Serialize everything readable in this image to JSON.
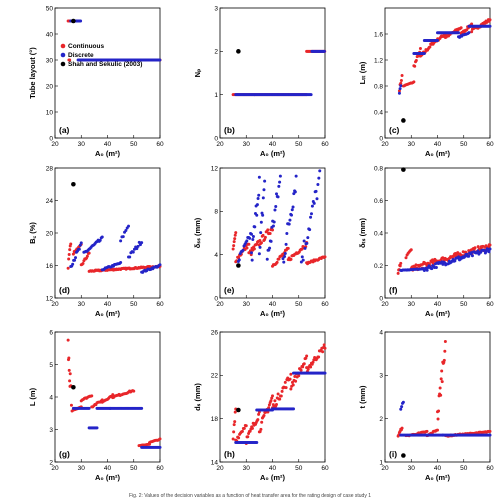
{
  "caption": "Fig. 2: Values of the decision variables as a function of heat transfer area for the rating design of case study 1",
  "colors": {
    "continuous": "#e8262a",
    "discrete": "#2424c8",
    "reference": "#000000"
  },
  "legend": {
    "items": [
      {
        "label": "Continuous",
        "color": "#e8262a"
      },
      {
        "label": "Discrete",
        "color": "#2424c8"
      },
      {
        "label": "Shah and Sekulic (2003)",
        "color": "#000000"
      }
    ]
  },
  "chart_data": [
    {
      "type": "scatter",
      "panel": "(a)",
      "ylabel": "Tube layout (°)",
      "xlabel": "A₀ (m²)",
      "xlim": [
        20,
        60
      ],
      "ylim": [
        0,
        50
      ],
      "xticks": [
        20,
        30,
        40,
        50,
        60
      ],
      "yticks": [
        0,
        10,
        20,
        30,
        40,
        50
      ],
      "legend": "top-right",
      "series": [
        {
          "name": "Continuous",
          "gen": "flat",
          "segments": [
            [
              25,
              26.5,
              45,
              0.4
            ],
            [
              27.3,
              28.8,
              45,
              0.4
            ],
            [
              25.3,
              25.6,
              30,
              0.3
            ],
            [
              30,
              60,
              30,
              0.4
            ]
          ]
        },
        {
          "name": "Discrete",
          "gen": "flat",
          "segments": [
            [
              26,
              29.8,
              45,
              0.25
            ],
            [
              28.8,
              60,
              30,
              0.35
            ]
          ]
        },
        {
          "name": "Shah and Sekulic (2003)",
          "points": [
            [
              27,
              45
            ]
          ]
        }
      ]
    },
    {
      "type": "scatter",
      "panel": "(b)",
      "ylabel": "Nₚ",
      "xlabel": "A₀ (m²)",
      "xlim": [
        20,
        60
      ],
      "ylim": [
        0,
        3
      ],
      "xticks": [
        20,
        30,
        40,
        50,
        60
      ],
      "yticks": [
        0,
        1,
        2,
        3
      ],
      "series": [
        {
          "name": "Continuous",
          "gen": "flat",
          "segments": [
            [
              25,
              53,
              1,
              0.35
            ],
            [
              53,
              60,
              2,
              0.3
            ]
          ]
        },
        {
          "name": "Discrete",
          "gen": "flat",
          "segments": [
            [
              26,
              55,
              1,
              0.35
            ],
            [
              55,
              60,
              2,
              0.3
            ]
          ]
        },
        {
          "name": "Shah and Sekulic (2003)",
          "points": [
            [
              27,
              2
            ]
          ]
        }
      ]
    },
    {
      "type": "scatter",
      "panel": "(c)",
      "ylabel": "Lₜₜ (m)",
      "xlabel": "A₀ (m²)",
      "xlim": [
        20,
        60
      ],
      "ylim": [
        0,
        2
      ],
      "xticks": [
        20,
        30,
        40,
        50,
        60
      ],
      "yticks": [
        0,
        0.4,
        0.8,
        1.2,
        1.6
      ],
      "series": [
        {
          "name": "Continuous",
          "gen": "ramp",
          "segments": [
            [
              25.5,
              26.5,
              0.75,
              0.95,
              0.25
            ],
            [
              27,
              31,
              0.8,
              0.86,
              0.4
            ],
            [
              31,
              33.5,
              1.1,
              1.35,
              0.3
            ],
            [
              33.5,
              38,
              1.25,
              1.45,
              0.3
            ],
            [
              38,
              43,
              1.45,
              1.6,
              0.3
            ],
            [
              43,
              49,
              1.55,
              1.7,
              0.3
            ],
            [
              49,
              53,
              1.6,
              1.75,
              0.3
            ],
            [
              53,
              60,
              1.65,
              1.82,
              0.3
            ]
          ]
        },
        {
          "name": "Discrete",
          "gen": "ramp",
          "segments": [
            [
              25.5,
              26,
              0.7,
              0.8,
              0.3
            ],
            [
              31,
              35,
              1.3,
              1.3,
              0.35
            ],
            [
              35,
              40,
              1.5,
              1.5,
              0.35
            ],
            [
              40,
              48,
              1.62,
              1.62,
              0.35
            ],
            [
              48,
              52,
              1.55,
              1.62,
              0.4
            ],
            [
              52,
              60,
              1.72,
              1.72,
              0.35
            ]
          ]
        },
        {
          "name": "Shah and Sekulic (2003)",
          "points": [
            [
              27,
              0.27
            ]
          ]
        }
      ]
    },
    {
      "type": "scatter",
      "panel": "(d)",
      "ylabel": "B꜀ (%)",
      "xlabel": "A₀ (m²)",
      "xlim": [
        20,
        60
      ],
      "ylim": [
        12,
        28
      ],
      "xticks": [
        20,
        30,
        40,
        50,
        60
      ],
      "yticks": [
        12,
        16,
        20,
        24,
        28
      ],
      "series": [
        {
          "name": "Continuous",
          "gen": "ramp",
          "segments": [
            [
              25,
              26,
              16,
              19,
              0.2
            ],
            [
              27,
              30,
              17.5,
              18.5,
              0.35
            ],
            [
              30,
              33,
              16,
              17.5,
              0.35
            ],
            [
              33,
              60,
              15.3,
              15.9,
              0.3
            ]
          ]
        },
        {
          "name": "Discrete",
          "gen": "ramp",
          "segments": [
            [
              26,
              30,
              16,
              18.5,
              0.35
            ],
            [
              31,
              38,
              17.5,
              19.3,
              0.4
            ],
            [
              38,
              45,
              15.5,
              16.3,
              0.4
            ],
            [
              45,
              48,
              19,
              21,
              0.5
            ],
            [
              48,
              53,
              17,
              19,
              0.45
            ],
            [
              53,
              60,
              15.2,
              16,
              0.4
            ]
          ]
        },
        {
          "name": "Shah and Sekulic (2003)",
          "points": [
            [
              27,
              26
            ]
          ]
        }
      ]
    },
    {
      "type": "scatter",
      "panel": "(e)",
      "ylabel": "δₛₛ (mm)",
      "xlabel": "A₀ (m²)",
      "xlim": [
        20,
        60
      ],
      "ylim": [
        0,
        12
      ],
      "xticks": [
        20,
        30,
        40,
        50,
        60
      ],
      "yticks": [
        0,
        4,
        8,
        12
      ],
      "series": [
        {
          "name": "Continuous",
          "gen": "ramp",
          "segments": [
            [
              25,
              26,
              4.5,
              6,
              0.2
            ],
            [
              26,
              31,
              3.5,
              5,
              0.35
            ],
            [
              31,
              40,
              4,
              6.5,
              0.3
            ],
            [
              40,
              46,
              3,
              4.5,
              0.35
            ],
            [
              46,
              53,
              3.5,
              5,
              0.35
            ],
            [
              53,
              60,
              3.2,
              3.8,
              0.35
            ]
          ]
        },
        {
          "name": "Discrete",
          "gen": "ramp",
          "segments": [
            [
              27,
              32,
              3.5,
              6,
              0.35
            ],
            [
              32,
              35,
              3.5,
              11,
              0.25
            ],
            [
              35,
              37,
              3.5,
              11,
              0.25
            ],
            [
              38,
              43,
              3.5,
              11,
              0.3
            ],
            [
              44,
              49,
              3.5,
              11,
              0.3
            ],
            [
              51,
              58,
              3.5,
              11,
              0.35
            ]
          ]
        },
        {
          "name": "Shah and Sekulic (2003)",
          "points": [
            [
              27,
              3
            ]
          ]
        }
      ]
    },
    {
      "type": "scatter",
      "panel": "(f)",
      "ylabel": "δₜₛ (mm)",
      "xlabel": "A₀ (m²)",
      "xlim": [
        20,
        60
      ],
      "ylim": [
        0,
        0.8
      ],
      "xticks": [
        20,
        30,
        40,
        50,
        60
      ],
      "yticks": [
        0,
        0.2,
        0.4,
        0.6,
        0.8
      ],
      "series": [
        {
          "name": "Continuous",
          "gen": "ramp",
          "segments": [
            [
              25,
              26,
              0.15,
              0.22,
              0.2
            ],
            [
              28,
              30,
              0.25,
              0.3,
              0.4
            ],
            [
              30,
              60,
              0.18,
              0.32,
              0.3
            ]
          ]
        },
        {
          "name": "Discrete",
          "gen": "ramp",
          "segments": [
            [
              26,
              35,
              0.17,
              0.18,
              0.4
            ],
            [
              35,
              60,
              0.18,
              0.3,
              0.35
            ]
          ]
        },
        {
          "name": "Shah and Sekulic (2003)",
          "points": [
            [
              27,
              0.79
            ]
          ]
        }
      ]
    },
    {
      "type": "scatter",
      "panel": "(g)",
      "ylabel": "L (m)",
      "xlabel": "A₀ (m²)",
      "xlim": [
        20,
        60
      ],
      "ylim": [
        2,
        6
      ],
      "xticks": [
        20,
        30,
        40,
        50,
        60
      ],
      "yticks": [
        2,
        3,
        4,
        5,
        6
      ],
      "series": [
        {
          "name": "Continuous",
          "gen": "ramp",
          "segments": [
            [
              25,
              25.7,
              5.6,
              4.2,
              0.15
            ],
            [
              25.8,
              26.5,
              4.6,
              3.5,
              0.25
            ],
            [
              27,
              30,
              3.6,
              3.7,
              0.4
            ],
            [
              30,
              34,
              3.9,
              4.05,
              0.4
            ],
            [
              34,
              38,
              3.7,
              3.9,
              0.4
            ],
            [
              38,
              42,
              3.85,
              4.05,
              0.4
            ],
            [
              42,
              50,
              4.0,
              4.2,
              0.4
            ],
            [
              52,
              56,
              2.5,
              2.55,
              0.45
            ],
            [
              56,
              60,
              2.6,
              2.7,
              0.45
            ]
          ]
        },
        {
          "name": "Discrete",
          "gen": "ramp",
          "segments": [
            [
              27,
              33,
              3.65,
              3.65,
              0.4
            ],
            [
              33,
              36,
              3.05,
              3.05,
              0.4
            ],
            [
              36,
              41,
              3.65,
              3.65,
              0.4
            ],
            [
              41,
              53,
              3.65,
              3.65,
              0.45
            ],
            [
              53,
              60,
              2.45,
              2.45,
              0.45
            ]
          ]
        },
        {
          "name": "Shah and Sekulic (2003)",
          "points": [
            [
              27,
              4.3
            ]
          ]
        }
      ]
    },
    {
      "type": "scatter",
      "panel": "(h)",
      "ylabel": "dₛ (mm)",
      "xlabel": "A₀ (m²)",
      "xlim": [
        20,
        60
      ],
      "ylim": [
        14,
        26
      ],
      "xticks": [
        20,
        30,
        40,
        50,
        60
      ],
      "yticks": [
        14,
        18,
        22,
        26
      ],
      "series": [
        {
          "name": "Continuous",
          "gen": "ramp",
          "segments": [
            [
              25,
              26,
              16,
              19,
              0.2
            ],
            [
              26,
              30,
              16,
              17.5,
              0.35
            ],
            [
              30,
              35,
              16,
              18.5,
              0.3
            ],
            [
              35,
              40,
              17,
              20,
              0.3
            ],
            [
              40,
              47,
              19,
              22,
              0.3
            ],
            [
              47,
              53,
              21,
              23.5,
              0.3
            ],
            [
              53,
              60,
              22.5,
              24.7,
              0.3
            ]
          ]
        },
        {
          "name": "Discrete",
          "gen": "ramp",
          "segments": [
            [
              26,
              34,
              15.8,
              15.8,
              0.4
            ],
            [
              34,
              40,
              18.8,
              18.8,
              0.45
            ],
            [
              40,
              48,
              18.9,
              18.9,
              0.45
            ],
            [
              48,
              60,
              22.2,
              22.2,
              0.35
            ]
          ]
        },
        {
          "name": "Shah and Sekulic (2003)",
          "points": [
            [
              27,
              18.8
            ]
          ]
        }
      ]
    },
    {
      "type": "scatter",
      "panel": "(i)",
      "ylabel": "t (mm)",
      "xlabel": "A₀ (m²)",
      "xlim": [
        20,
        60
      ],
      "ylim": [
        1,
        4
      ],
      "xticks": [
        20,
        30,
        40,
        50,
        60
      ],
      "yticks": [
        1,
        2,
        3,
        4
      ],
      "series": [
        {
          "name": "Continuous",
          "gen": "ramp",
          "segments": [
            [
              25,
              26.5,
              1.6,
              1.8,
              0.25
            ],
            [
              28,
              36,
              1.6,
              1.7,
              0.4
            ],
            [
              36,
              40,
              1.6,
              1.75,
              0.4
            ],
            [
              40,
              43,
              2.0,
              3.8,
              0.2
            ],
            [
              43,
              60,
              1.6,
              1.7,
              0.35
            ]
          ]
        },
        {
          "name": "Discrete",
          "gen": "ramp",
          "segments": [
            [
              26,
              42,
              1.62,
              1.62,
              0.45
            ],
            [
              26,
              27,
              2.2,
              2.4,
              0.4
            ],
            [
              42,
              60,
              1.62,
              1.62,
              0.4
            ]
          ]
        },
        {
          "name": "Shah and Sekulic (2003)",
          "points": [
            [
              27,
              1.15
            ]
          ]
        }
      ]
    }
  ]
}
